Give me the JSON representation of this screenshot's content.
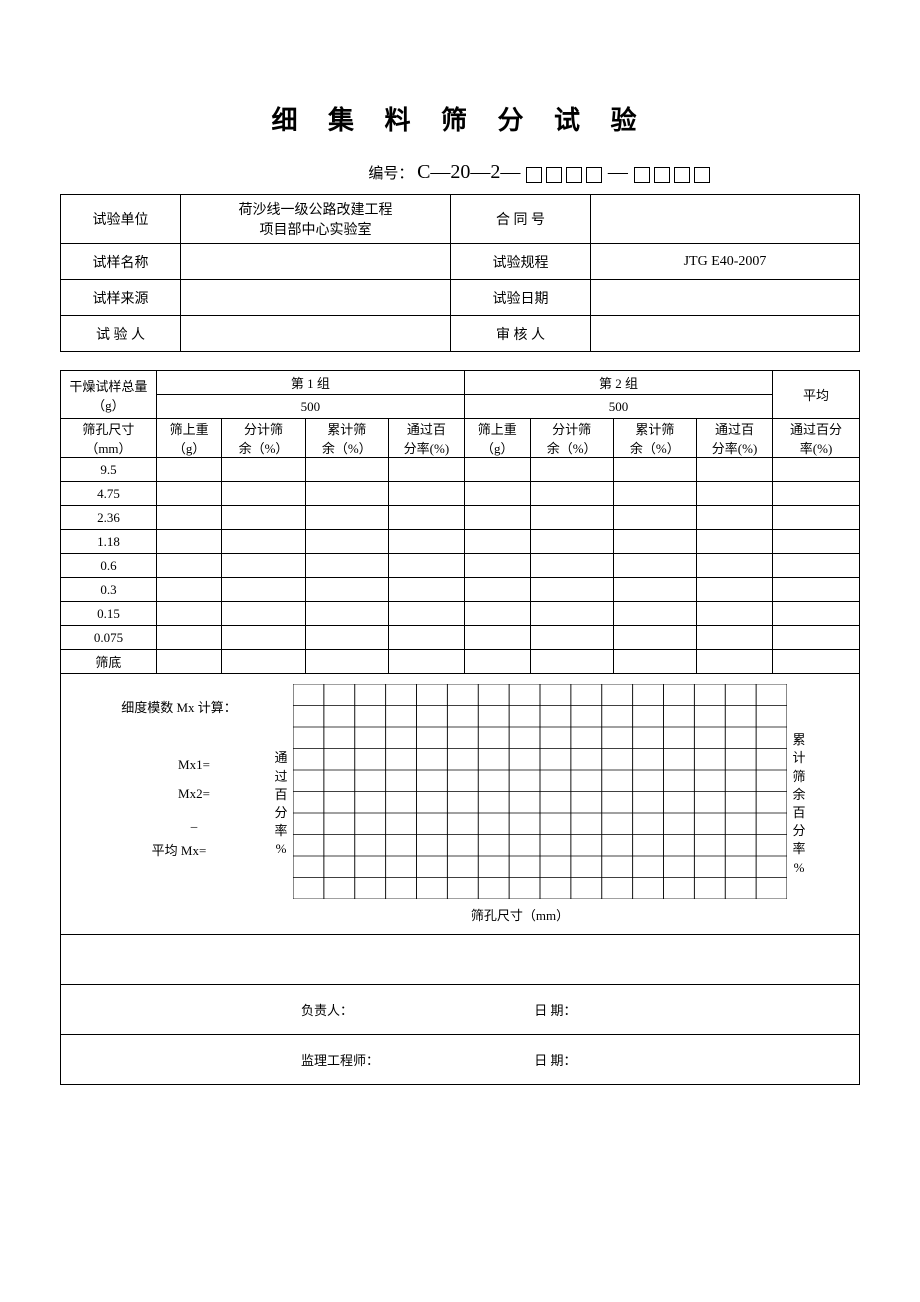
{
  "title": "细 集 料 筛 分 试 验",
  "doc_no_label": "编号：",
  "doc_no_prefix": "C—20—2—",
  "meta": {
    "rows": [
      {
        "l1": "试验单位",
        "v1": "荷沙线一级公路改建工程\n项目部中心实验室",
        "l2": "合 同 号",
        "v2": ""
      },
      {
        "l1": "试样名称",
        "v1": "",
        "l2": "试验规程",
        "v2": "JTG E40-2007"
      },
      {
        "l1": "试样来源",
        "v1": "",
        "l2": "试验日期",
        "v2": ""
      },
      {
        "l1": "试 验 人",
        "v1": "",
        "l2": "审 核 人",
        "v2": ""
      }
    ]
  },
  "sieve": {
    "dry_mass_label": "干燥试样总量\n（g）",
    "group1_label": "第 1 组",
    "group2_label": "第 2 组",
    "avg_label": "平均",
    "group1_mass": "500",
    "group2_mass": "500",
    "sieve_size_label": "筛孔尺寸\n（mm）",
    "col_retained": "筛上重\n（g）",
    "col_indiv": "分计筛\n余（%）",
    "col_cum": "累计筛\n余（%）",
    "col_pass": "通过百\n分率(%)",
    "col_avg_pass": "通过百分\n率(%)",
    "sizes": [
      "9.5",
      "4.75",
      "2.36",
      "1.18",
      "0.6",
      "0.3",
      "0.15",
      "0.075",
      "筛底"
    ]
  },
  "calc": {
    "header": "细度模数 Mx 计算：",
    "mx1": "Mx1=",
    "mx2": "Mx2=",
    "under": "_",
    "avg": "平均 Mx=",
    "vert_left": "通过百分率%",
    "vert_right": "累计筛余百分率%",
    "xaxis": "筛孔尺寸（mm）"
  },
  "sig": {
    "responsible": "负责人：",
    "date": "日 期：",
    "supervisor": "监理工程师："
  },
  "style": {
    "grid_cols": 16,
    "grid_rows": 10,
    "grid_color": "#000",
    "grid_stroke": 0.6
  }
}
